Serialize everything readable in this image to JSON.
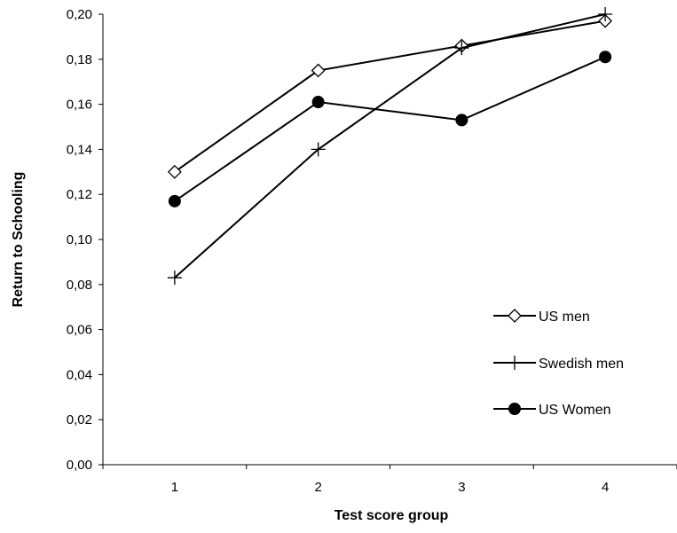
{
  "chart_data": {
    "type": "line",
    "title": "",
    "xlabel": "Test score group",
    "ylabel": "Return to Schooling",
    "categories": [
      "1",
      "2",
      "3",
      "4"
    ],
    "ylim": [
      0,
      0.2
    ],
    "yticks": [
      "0,00",
      "0,02",
      "0,04",
      "0,06",
      "0,08",
      "0,10",
      "0,12",
      "0,14",
      "0,16",
      "0,18",
      "0,20"
    ],
    "grid": false,
    "legend_position": "bottom-right",
    "series": [
      {
        "name": "US men",
        "marker": "diamond-open",
        "color": "#000000",
        "values": [
          0.13,
          0.175,
          0.186,
          0.197
        ]
      },
      {
        "name": "Swedish men",
        "marker": "plus",
        "color": "#000000",
        "values": [
          0.083,
          0.14,
          0.185,
          0.2
        ]
      },
      {
        "name": "US Women",
        "marker": "circle-filled",
        "color": "#000000",
        "values": [
          0.117,
          0.161,
          0.153,
          0.181
        ]
      }
    ]
  }
}
